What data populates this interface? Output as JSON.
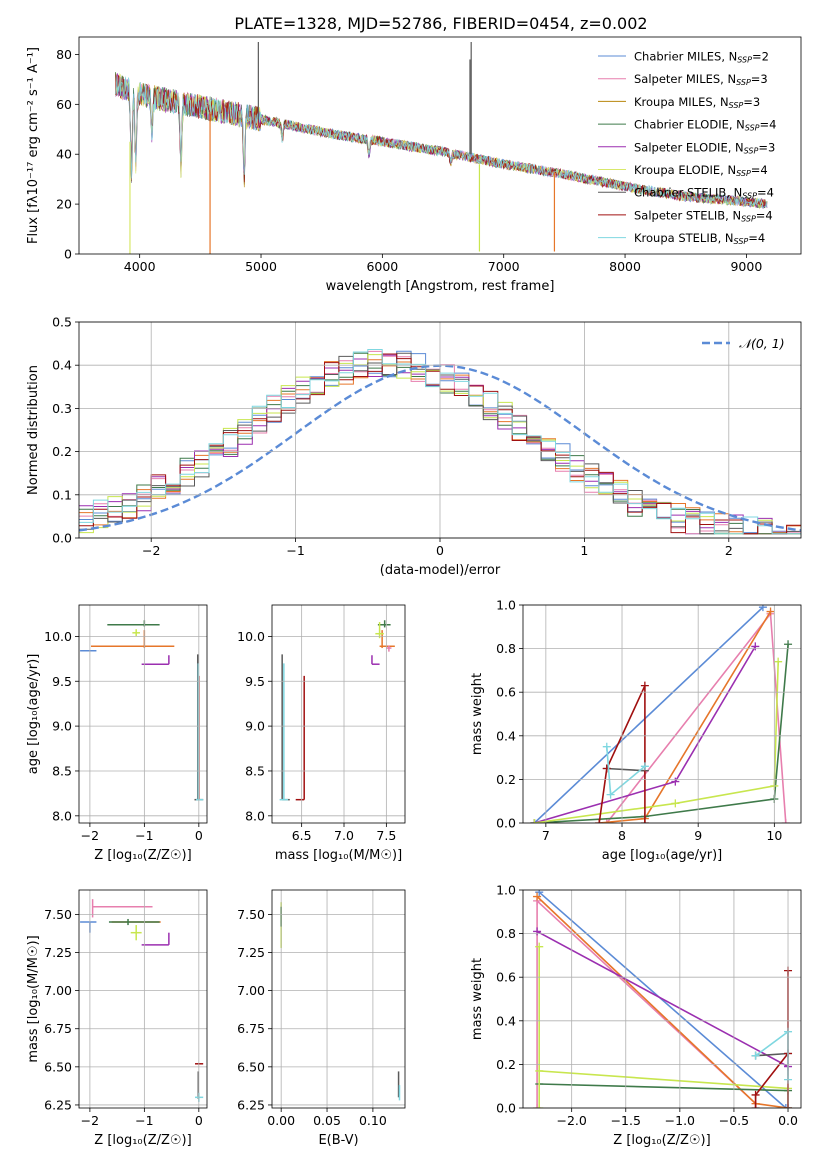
{
  "page_title": "PLATE=1328, MJD=52786, FIBERID=0454, z=0.002",
  "colors": {
    "Chabrier MILES": "#5b8bd6",
    "Salpeter MILES": "#e77fae",
    "Kroupa MILES": "#b8860b",
    "Chabrier ELODIE": "#3f7a4a",
    "Salpeter ELODIE": "#9b2fb0",
    "Kroupa ELODIE": "#d8e86a",
    "Chabrier STELIB": "#5a5a5a",
    "Salpeter STELIB": "#a01010",
    "Kroupa STELIB": "#7fd7e0",
    "Orange": "#e6762a",
    "Lime": "#c8e64e",
    "Normal": "#5b8bd6"
  },
  "chart_data": [
    {
      "id": "spectrum",
      "type": "line",
      "title": "PLATE=1328, MJD=52786, FIBERID=0454, z=0.002",
      "xlabel": "wavelength [Angstrom, rest frame]",
      "ylabel": "Flux [fλ10⁻¹⁷ erg cm⁻² s⁻¹ A⁻¹]",
      "xlim": [
        3500,
        9450
      ],
      "ylim": [
        0,
        87
      ],
      "xticks": [
        4000,
        5000,
        6000,
        7000,
        8000,
        9000
      ],
      "yticks": [
        0,
        20,
        40,
        60,
        80
      ],
      "grid": false,
      "legend_position": "top-right",
      "legend": [
        {
          "label": "Chabrier MILES, N",
          "sub": "SSP",
          "suffix": "=2",
          "color_key": "Chabrier MILES"
        },
        {
          "label": "Salpeter MILES, N",
          "sub": "SSP",
          "suffix": "=3",
          "color_key": "Salpeter MILES"
        },
        {
          "label": "Kroupa MILES, N",
          "sub": "SSP",
          "suffix": "=3",
          "color_key": "Kroupa MILES"
        },
        {
          "label": "Chabrier ELODIE, N",
          "sub": "SSP",
          "suffix": "=4",
          "color_key": "Chabrier ELODIE"
        },
        {
          "label": "Salpeter ELODIE, N",
          "sub": "SSP",
          "suffix": "=3",
          "color_key": "Salpeter ELODIE"
        },
        {
          "label": "Kroupa ELODIE, N",
          "sub": "SSP",
          "suffix": "=4",
          "color_key": "Kroupa ELODIE"
        },
        {
          "label": "Chabrier STELIB, N",
          "sub": "SSP",
          "suffix": "=4",
          "color_key": "Chabrier STELIB"
        },
        {
          "label": "Salpeter STELIB, N",
          "sub": "SSP",
          "suffix": "=4",
          "color_key": "Salpeter STELIB"
        },
        {
          "label": "Kroupa STELIB, N",
          "sub": "SSP",
          "suffix": "=4",
          "color_key": "Kroupa STELIB"
        }
      ],
      "continuum": [
        [
          3800,
          68
        ],
        [
          3900,
          66
        ],
        [
          4000,
          64
        ],
        [
          4200,
          62
        ],
        [
          4400,
          60
        ],
        [
          4600,
          58
        ],
        [
          4800,
          56
        ],
        [
          5000,
          54
        ],
        [
          5300,
          51
        ],
        [
          5600,
          48
        ],
        [
          6000,
          45
        ],
        [
          6500,
          41
        ],
        [
          7000,
          36
        ],
        [
          7500,
          32
        ],
        [
          8000,
          27
        ],
        [
          8500,
          23
        ],
        [
          9000,
          21
        ],
        [
          9170,
          20
        ]
      ],
      "absorption_lines": [
        [
          3933,
          34
        ],
        [
          3968,
          28
        ],
        [
          4102,
          14
        ],
        [
          4340,
          26
        ],
        [
          4861,
          24
        ],
        [
          5175,
          6
        ],
        [
          5890,
          6
        ],
        [
          6563,
          4
        ]
      ],
      "spikes": [
        {
          "x": 3920,
          "y0": 0,
          "y1": 45,
          "color_key": "Kroupa ELODIE"
        },
        {
          "x": 4580,
          "y0": 0,
          "y1": 57,
          "color_key": "Orange"
        },
        {
          "x": 4978,
          "y0": 54,
          "y1": 85,
          "color_key": "Chabrier STELIB"
        },
        {
          "x": 6722,
          "y0": 40,
          "y1": 78,
          "color_key": "Chabrier STELIB"
        },
        {
          "x": 6732,
          "y0": 40,
          "y1": 85,
          "color_key": "Chabrier STELIB"
        },
        {
          "x": 6800,
          "y0": 1,
          "y1": 36,
          "color_key": "Lime"
        },
        {
          "x": 7418,
          "y0": 1,
          "y1": 33,
          "color_key": "Orange"
        }
      ]
    },
    {
      "id": "residuals",
      "type": "line",
      "xlabel": "(data-model)/error",
      "ylabel": "Normed distribution",
      "xlim": [
        -2.5,
        2.5
      ],
      "ylim": [
        0,
        0.5
      ],
      "xticks": [
        -2,
        -1,
        0,
        1,
        2
      ],
      "yticks": [
        0.0,
        0.1,
        0.2,
        0.3,
        0.4,
        0.5
      ],
      "grid": true,
      "legend_position": "top-right",
      "normal_label": "𝒩(0, 1)",
      "bin_width": 0.1,
      "bins_start": -2.5
    },
    {
      "id": "z_age",
      "type": "scatter",
      "xlabel": "Z [log₁₀(Z/Z☉)]",
      "ylabel": "age  [log₁₀(age/yr)]",
      "xlim": [
        -2.2,
        0.15
      ],
      "ylim": [
        7.92,
        10.35
      ],
      "xticks": [
        -2,
        -1,
        0
      ],
      "yticks": [
        8.0,
        8.5,
        9.0,
        9.5,
        10.0
      ],
      "grid": true,
      "errorbars": [
        {
          "x": -2.0,
          "y": 9.84,
          "xlo": -2.18,
          "xhi": -1.88,
          "ylo": 9.84,
          "yhi": 9.84,
          "color_key": "Chabrier MILES"
        },
        {
          "x": -1.0,
          "y": 9.89,
          "xlo": -1.98,
          "xhi": -0.45,
          "ylo": 9.87,
          "yhi": 10.07,
          "color_key": "Orange"
        },
        {
          "x": -1.0,
          "y": 10.13,
          "xlo": -1.68,
          "xhi": -0.72,
          "ylo": 10.11,
          "yhi": 10.18,
          "color_key": "Chabrier ELODIE"
        },
        {
          "x": -0.55,
          "y": 9.69,
          "xlo": -1.05,
          "xhi": -0.55,
          "ylo": 9.69,
          "yhi": 9.79,
          "color_key": "Salpeter ELODIE"
        },
        {
          "x": -1.15,
          "y": 10.04,
          "xlo": -1.22,
          "xhi": -1.08,
          "ylo": 10.0,
          "yhi": 10.08,
          "color_key": "Lime"
        },
        {
          "x": -0.02,
          "y": 8.18,
          "xlo": -0.08,
          "xhi": 0.08,
          "ylo": 8.18,
          "yhi": 9.8,
          "color_key": "Chabrier STELIB"
        },
        {
          "x": 0.0,
          "y": 8.18,
          "xlo": 0.0,
          "xhi": 0.0,
          "ylo": 8.18,
          "yhi": 9.56,
          "color_key": "Salpeter STELIB"
        },
        {
          "x": -0.01,
          "y": 8.18,
          "xlo": -0.05,
          "xhi": 0.08,
          "ylo": 8.18,
          "yhi": 9.7,
          "color_key": "Kroupa STELIB"
        }
      ]
    },
    {
      "id": "mass_age",
      "type": "scatter",
      "xlabel": "mass [log₁₀(M/M☉)]",
      "ylabel": "",
      "xlim": [
        6.15,
        7.72
      ],
      "ylim": [
        7.92,
        10.35
      ],
      "xticks": [
        6.5,
        7.0,
        7.5
      ],
      "yticks": [
        8.0,
        8.5,
        9.0,
        9.5,
        10.0
      ],
      "grid": true,
      "errorbars": [
        {
          "x": 7.33,
          "y": 9.69,
          "xlo": 7.33,
          "xhi": 7.42,
          "ylo": 9.69,
          "yhi": 9.79,
          "color_key": "Salpeter ELODIE"
        },
        {
          "x": 7.45,
          "y": 9.89,
          "xlo": 7.42,
          "xhi": 7.6,
          "ylo": 9.87,
          "yhi": 10.07,
          "color_key": "Orange"
        },
        {
          "x": 7.48,
          "y": 10.13,
          "xlo": 7.4,
          "xhi": 7.55,
          "ylo": 10.1,
          "yhi": 10.18,
          "color_key": "Chabrier ELODIE"
        },
        {
          "x": 7.42,
          "y": 10.03,
          "xlo": 7.37,
          "xhi": 7.47,
          "ylo": 9.98,
          "yhi": 10.16,
          "color_key": "Lime"
        },
        {
          "x": 7.53,
          "y": 9.87,
          "xlo": 7.5,
          "xhi": 7.56,
          "ylo": 9.83,
          "yhi": 9.9,
          "color_key": "Salpeter MILES"
        },
        {
          "x": 6.27,
          "y": 8.18,
          "xlo": 6.27,
          "xhi": 6.36,
          "ylo": 8.18,
          "yhi": 9.8,
          "color_key": "Chabrier STELIB"
        },
        {
          "x": 6.53,
          "y": 8.18,
          "xlo": 6.43,
          "xhi": 6.53,
          "ylo": 8.18,
          "yhi": 9.56,
          "color_key": "Salpeter STELIB"
        },
        {
          "x": 6.29,
          "y": 8.18,
          "xlo": 6.24,
          "xhi": 6.34,
          "ylo": 8.18,
          "yhi": 9.7,
          "color_key": "Kroupa STELIB"
        }
      ]
    },
    {
      "id": "age_weight",
      "type": "line",
      "xlabel": "age  [log₁₀(age/yr)]",
      "ylabel": "mass weight",
      "xlim": [
        6.7,
        10.35
      ],
      "ylim": [
        0,
        1.0
      ],
      "xticks": [
        7,
        8,
        9,
        10
      ],
      "yticks": [
        0.0,
        0.2,
        0.4,
        0.6,
        0.8,
        1.0
      ],
      "grid": true,
      "series": [
        {
          "color_key": "Chabrier MILES",
          "points": [
            [
              6.85,
              0.0
            ],
            [
              9.85,
              0.99
            ]
          ]
        },
        {
          "color_key": "Salpeter MILES",
          "points": [
            [
              7.8,
              0.0
            ],
            [
              9.95,
              0.96
            ],
            [
              10.15,
              0.0
            ]
          ]
        },
        {
          "color_key": "Orange",
          "points": [
            [
              7.7,
              0.0
            ],
            [
              8.3,
              0.02
            ],
            [
              9.95,
              0.97
            ]
          ]
        },
        {
          "color_key": "Chabrier ELODIE",
          "points": [
            [
              6.85,
              0.0
            ],
            [
              8.3,
              0.03
            ],
            [
              10.0,
              0.11
            ],
            [
              10.18,
              0.82
            ]
          ]
        },
        {
          "color_key": "Salpeter ELODIE",
          "points": [
            [
              6.85,
              0.0
            ],
            [
              8.7,
              0.19
            ],
            [
              9.75,
              0.81
            ]
          ]
        },
        {
          "color_key": "Lime",
          "points": [
            [
              6.85,
              0.0
            ],
            [
              8.7,
              0.09
            ],
            [
              10.0,
              0.17
            ],
            [
              10.05,
              0.74
            ]
          ]
        },
        {
          "color_key": "Chabrier STELIB",
          "points": [
            [
              7.8,
              0.25
            ],
            [
              8.3,
              0.24
            ]
          ]
        },
        {
          "color_key": "Salpeter STELIB",
          "points": [
            [
              7.7,
              0.0
            ],
            [
              7.8,
              0.25
            ],
            [
              8.3,
              0.63
            ],
            [
              8.3,
              0.0
            ]
          ]
        },
        {
          "color_key": "Kroupa STELIB",
          "points": [
            [
              7.8,
              0.35
            ],
            [
              7.85,
              0.13
            ],
            [
              8.3,
              0.26
            ]
          ]
        }
      ]
    },
    {
      "id": "z_mass",
      "type": "scatter",
      "xlabel": "Z [log₁₀(Z/Z☉)]",
      "ylabel": "mass [log₁₀(M/M☉)]",
      "xlim": [
        -2.2,
        0.15
      ],
      "ylim": [
        6.23,
        7.66
      ],
      "xticks": [
        -2,
        -1,
        0
      ],
      "yticks": [
        6.25,
        6.5,
        6.75,
        7.0,
        7.25,
        7.5
      ],
      "grid": true,
      "errorbars": [
        {
          "x": -2.0,
          "y": 7.45,
          "xlo": -2.18,
          "xhi": -1.88,
          "ylo": 7.38,
          "yhi": 7.45,
          "color_key": "Chabrier MILES"
        },
        {
          "x": -1.95,
          "y": 7.55,
          "xlo": -1.95,
          "xhi": -0.85,
          "ylo": 7.48,
          "yhi": 7.6,
          "color_key": "Salpeter MILES"
        },
        {
          "x": -1.6,
          "y": 7.45,
          "xlo": -1.6,
          "xhi": -0.7,
          "ylo": 7.45,
          "yhi": 7.45,
          "color_key": "Orange"
        },
        {
          "x": -1.3,
          "y": 7.45,
          "xlo": -1.65,
          "xhi": -0.72,
          "ylo": 7.43,
          "yhi": 7.47,
          "color_key": "Chabrier ELODIE"
        },
        {
          "x": -0.55,
          "y": 7.3,
          "xlo": -1.05,
          "xhi": -0.55,
          "ylo": 7.3,
          "yhi": 7.38,
          "color_key": "Salpeter ELODIE"
        },
        {
          "x": -1.15,
          "y": 7.38,
          "xlo": -1.25,
          "xhi": -1.05,
          "ylo": 7.33,
          "yhi": 7.43,
          "color_key": "Lime"
        },
        {
          "x": 0.0,
          "y": 6.52,
          "xlo": -0.07,
          "xhi": 0.08,
          "ylo": 6.52,
          "yhi": 6.52,
          "color_key": "Salpeter STELIB"
        },
        {
          "x": -0.01,
          "y": 6.37,
          "xlo": -0.01,
          "xhi": -0.01,
          "ylo": 6.29,
          "yhi": 6.47,
          "color_key": "Chabrier STELIB"
        },
        {
          "x": 0.0,
          "y": 6.3,
          "xlo": -0.07,
          "xhi": 0.08,
          "ylo": 6.27,
          "yhi": 6.33,
          "color_key": "Kroupa STELIB"
        }
      ]
    },
    {
      "id": "ebv_mass",
      "type": "scatter",
      "xlabel": "E(B-V)",
      "ylabel": "",
      "xlim": [
        -0.01,
        0.135
      ],
      "ylim": [
        6.23,
        7.66
      ],
      "xticks": [
        0.0,
        0.05,
        0.1
      ],
      "yticks": [
        6.25,
        6.5,
        6.75,
        7.0,
        7.25,
        7.5
      ],
      "grid": true,
      "errorbars": [
        {
          "x": 0.0,
          "y": 7.45,
          "xlo": 0.0,
          "xhi": 0.0,
          "ylo": 7.28,
          "yhi": 7.58,
          "color_key": "Lime"
        },
        {
          "x": 0.0,
          "y": 7.5,
          "xlo": 0.0,
          "xhi": 0.0,
          "ylo": 7.42,
          "yhi": 7.55,
          "color_key": "Chabrier ELODIE"
        },
        {
          "x": 0.128,
          "y": 6.38,
          "xlo": 0.128,
          "xhi": 0.128,
          "ylo": 6.3,
          "yhi": 6.47,
          "color_key": "Chabrier STELIB"
        },
        {
          "x": 0.129,
          "y": 6.33,
          "xlo": 0.129,
          "xhi": 0.129,
          "ylo": 6.28,
          "yhi": 6.38,
          "color_key": "Kroupa STELIB"
        }
      ]
    },
    {
      "id": "z_weight",
      "type": "line",
      "xlabel": "Z [log₁₀(Z/Z☉)]",
      "ylabel": "mass weight",
      "xlim": [
        -2.45,
        0.12
      ],
      "ylim": [
        0,
        1.0
      ],
      "xticks": [
        -2.0,
        -1.5,
        -1.0,
        -0.5,
        0.0
      ],
      "yticks": [
        0.0,
        0.2,
        0.4,
        0.6,
        0.8,
        1.0
      ],
      "grid": true,
      "series": [
        {
          "color_key": "Chabrier MILES",
          "points": [
            [
              -2.3,
              0.99
            ],
            [
              -0.02,
              0.0
            ]
          ]
        },
        {
          "color_key": "Salpeter MILES",
          "points": [
            [
              -2.32,
              0.0
            ],
            [
              -2.32,
              0.95
            ],
            [
              -0.3,
              0.02
            ]
          ]
        },
        {
          "color_key": "Orange",
          "points": [
            [
              -2.32,
              0.97
            ],
            [
              -0.3,
              0.02
            ],
            [
              0.0,
              0.0
            ]
          ]
        },
        {
          "color_key": "Chabrier ELODIE",
          "points": [
            [
              -2.3,
              0.11
            ],
            [
              0.0,
              0.08
            ],
            [
              0.0,
              0.0
            ]
          ]
        },
        {
          "color_key": "Salpeter ELODIE",
          "points": [
            [
              -2.32,
              0.81
            ],
            [
              0.0,
              0.19
            ]
          ]
        },
        {
          "color_key": "Lime",
          "points": [
            [
              -2.3,
              0.0
            ],
            [
              -2.3,
              0.74
            ],
            [
              -2.3,
              0.17
            ],
            [
              0.0,
              0.09
            ]
          ]
        },
        {
          "color_key": "Chabrier STELIB",
          "points": [
            [
              -0.3,
              0.24
            ],
            [
              0.0,
              0.25
            ]
          ]
        },
        {
          "color_key": "Salpeter STELIB",
          "points": [
            [
              -0.3,
              0.0
            ],
            [
              -0.3,
              0.06
            ],
            [
              0.0,
              0.25
            ],
            [
              0.0,
              0.63
            ],
            [
              0.0,
              0.0
            ]
          ]
        },
        {
          "color_key": "Kroupa STELIB",
          "points": [
            [
              -0.3,
              0.24
            ],
            [
              0.0,
              0.35
            ],
            [
              0.0,
              0.13
            ]
          ]
        }
      ]
    }
  ]
}
